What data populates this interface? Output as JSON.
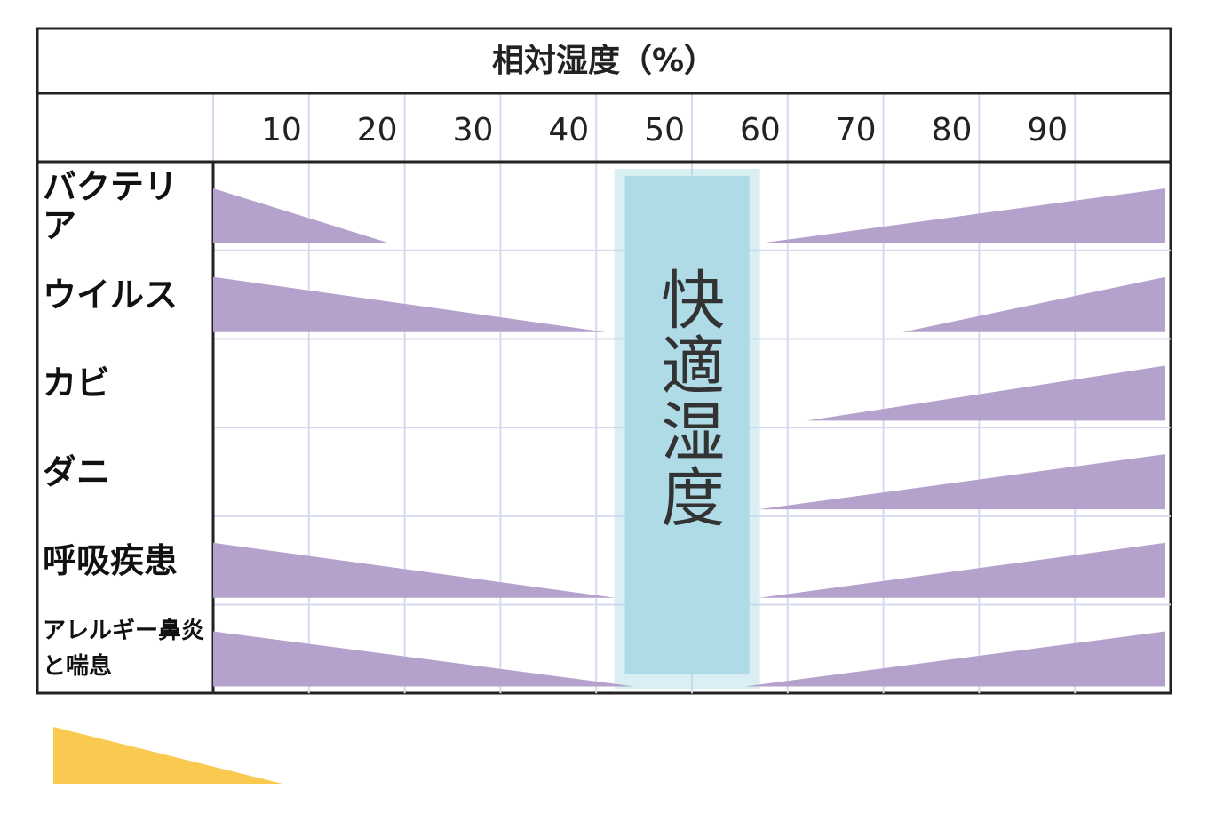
{
  "chart_data": {
    "type": "wedge-range",
    "title": "相対湿度（%）",
    "xlim": [
      0,
      100
    ],
    "xticks": [
      10,
      20,
      30,
      40,
      50,
      60,
      70,
      80,
      90
    ],
    "categories": [
      "バクテリア",
      "ウイルス",
      "カビ",
      "ダニ",
      "呼吸疾患",
      "アレルギー鼻炎と喘息"
    ],
    "decreasing": [
      [
        0,
        18.5
      ],
      [
        0,
        41
      ],
      null,
      null,
      [
        0,
        42
      ],
      [
        0,
        44
      ]
    ],
    "increasing": [
      [
        57,
        100
      ],
      [
        72,
        100
      ],
      [
        62,
        100
      ],
      [
        57,
        100
      ],
      [
        57,
        100
      ],
      [
        55.5,
        100
      ]
    ],
    "color": "#b4a1cc",
    "comfort_range": [
      43,
      56
    ],
    "comfort_label": "快適湿度",
    "comfort_color": "#aedbe6",
    "grid": true
  }
}
